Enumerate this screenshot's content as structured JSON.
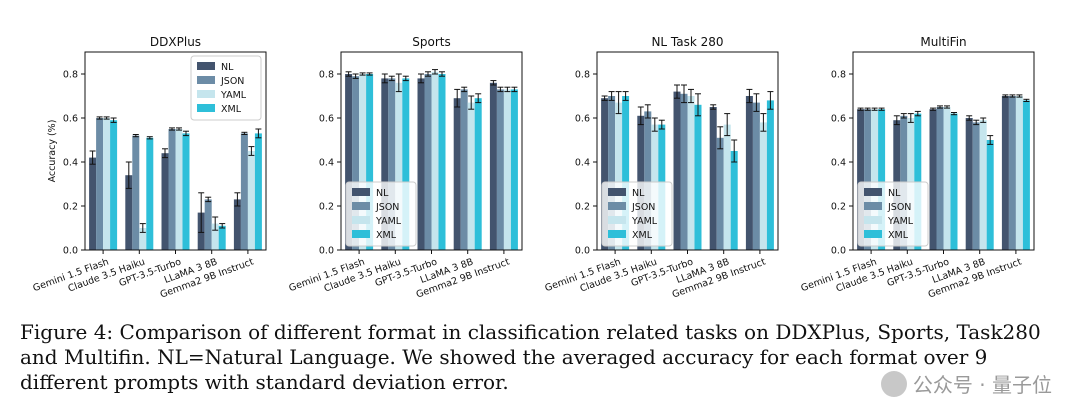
{
  "figure": {
    "caption": "Figure 4: Comparison of different format in classification related tasks on DDXPlus, Sports, Task280 and Multifin. NL=Natural Language. We showed the averaged accuracy for each format over 9 different prompts with standard deviation error.",
    "watermark": "公众号 · 量子位"
  },
  "colors": {
    "NL": "#43546e",
    "JSON": "#6c8ca6",
    "YAML": "#c5e5ed",
    "XML": "#2ebfd9"
  },
  "chart_data": [
    {
      "type": "bar",
      "title": "DDXPlus",
      "ylabel": "Accuracy (%)",
      "xlabel": "",
      "ylim": [
        0,
        0.9
      ],
      "yticks": [
        0.0,
        0.2,
        0.4,
        0.6,
        0.8
      ],
      "legend_position": "top-right",
      "categories": [
        "Gemini 1.5 Flash",
        "Claude 3.5 Haiku",
        "GPT-3.5-Turbo",
        "LLaMA 3 8B",
        "Gemma2 9B Instruct"
      ],
      "series": [
        {
          "name": "NL",
          "values": [
            0.42,
            0.34,
            0.44,
            0.17,
            0.23
          ],
          "errors": [
            0.03,
            0.06,
            0.02,
            0.09,
            0.03
          ]
        },
        {
          "name": "JSON",
          "values": [
            0.6,
            0.52,
            0.55,
            0.23,
            0.53
          ],
          "errors": [
            0.005,
            0.005,
            0.005,
            0.01,
            0.005
          ]
        },
        {
          "name": "YAML",
          "values": [
            0.6,
            0.1,
            0.55,
            0.12,
            0.45
          ],
          "errors": [
            0.005,
            0.02,
            0.005,
            0.03,
            0.02
          ]
        },
        {
          "name": "XML",
          "values": [
            0.59,
            0.51,
            0.53,
            0.11,
            0.53
          ],
          "errors": [
            0.01,
            0.005,
            0.01,
            0.01,
            0.02
          ]
        }
      ]
    },
    {
      "type": "bar",
      "title": "Sports",
      "ylabel": "",
      "xlabel": "",
      "ylim": [
        0,
        0.9
      ],
      "yticks": [
        0.0,
        0.2,
        0.4,
        0.6,
        0.8
      ],
      "legend_position": "bottom-left",
      "categories": [
        "Gemini 1.5 Flash",
        "Claude 3.5 Haiku",
        "GPT-3.5-Turbo",
        "LLaMA 3 8B",
        "Gemma2 9B Instruct"
      ],
      "series": [
        {
          "name": "NL",
          "values": [
            0.8,
            0.78,
            0.78,
            0.69,
            0.76
          ],
          "errors": [
            0.01,
            0.02,
            0.02,
            0.04,
            0.01
          ]
        },
        {
          "name": "JSON",
          "values": [
            0.79,
            0.78,
            0.8,
            0.73,
            0.73
          ],
          "errors": [
            0.01,
            0.01,
            0.01,
            0.01,
            0.01
          ]
        },
        {
          "name": "YAML",
          "values": [
            0.8,
            0.76,
            0.81,
            0.67,
            0.73
          ],
          "errors": [
            0.005,
            0.04,
            0.01,
            0.03,
            0.01
          ]
        },
        {
          "name": "XML",
          "values": [
            0.8,
            0.78,
            0.8,
            0.69,
            0.73
          ],
          "errors": [
            0.005,
            0.01,
            0.01,
            0.02,
            0.01
          ]
        }
      ]
    },
    {
      "type": "bar",
      "title": "NL Task 280",
      "ylabel": "",
      "xlabel": "",
      "ylim": [
        0,
        0.9
      ],
      "yticks": [
        0.0,
        0.2,
        0.4,
        0.6,
        0.8
      ],
      "legend_position": "bottom-left",
      "categories": [
        "Gemini 1.5 Flash",
        "Claude 3.5 Haiku",
        "GPT-3.5-Turbo",
        "LLaMA 3 8B",
        "Gemma2 9B Instruct"
      ],
      "series": [
        {
          "name": "NL",
          "values": [
            0.69,
            0.61,
            0.72,
            0.65,
            0.7
          ],
          "errors": [
            0.01,
            0.04,
            0.03,
            0.01,
            0.03
          ]
        },
        {
          "name": "JSON",
          "values": [
            0.7,
            0.63,
            0.71,
            0.51,
            0.67
          ],
          "errors": [
            0.02,
            0.03,
            0.04,
            0.05,
            0.04
          ]
        },
        {
          "name": "YAML",
          "values": [
            0.67,
            0.57,
            0.7,
            0.57,
            0.58
          ],
          "errors": [
            0.05,
            0.03,
            0.03,
            0.05,
            0.04
          ]
        },
        {
          "name": "XML",
          "values": [
            0.7,
            0.57,
            0.66,
            0.45,
            0.68
          ],
          "errors": [
            0.02,
            0.02,
            0.05,
            0.05,
            0.04
          ]
        }
      ]
    },
    {
      "type": "bar",
      "title": "MultiFin",
      "ylabel": "",
      "xlabel": "",
      "ylim": [
        0,
        0.9
      ],
      "yticks": [
        0.0,
        0.2,
        0.4,
        0.6,
        0.8
      ],
      "legend_position": "bottom-left",
      "categories": [
        "Gemini 1.5 Flash",
        "Claude 3.5 Haiku",
        "GPT-3.5-Turbo",
        "LLaMA 3 8B",
        "Gemma2 9B Instruct"
      ],
      "series": [
        {
          "name": "NL",
          "values": [
            0.64,
            0.59,
            0.64,
            0.6,
            0.7
          ],
          "errors": [
            0.005,
            0.02,
            0.005,
            0.01,
            0.005
          ]
        },
        {
          "name": "JSON",
          "values": [
            0.64,
            0.61,
            0.65,
            0.58,
            0.7
          ],
          "errors": [
            0.005,
            0.01,
            0.005,
            0.01,
            0.005
          ]
        },
        {
          "name": "YAML",
          "values": [
            0.64,
            0.6,
            0.65,
            0.59,
            0.7
          ],
          "errors": [
            0.005,
            0.02,
            0.005,
            0.01,
            0.005
          ]
        },
        {
          "name": "XML",
          "values": [
            0.64,
            0.62,
            0.62,
            0.5,
            0.68
          ],
          "errors": [
            0.005,
            0.01,
            0.005,
            0.02,
            0.005
          ]
        }
      ]
    }
  ]
}
